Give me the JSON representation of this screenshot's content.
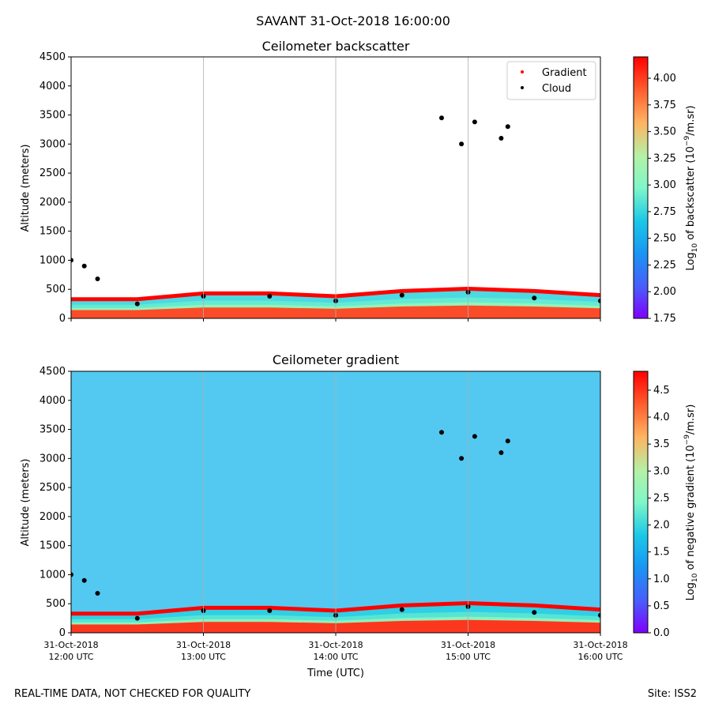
{
  "figure": {
    "suptitle": "SAVANT 31-Oct-2018 16:00:00",
    "footer_left": "REAL-TIME DATA, NOT CHECKED FOR QUALITY",
    "footer_right": "Site: ISS2"
  },
  "chart_data": [
    {
      "type": "heatmap",
      "title": "Ceilometer backscatter",
      "xlabel": "",
      "ylabel": "Altitude (meters)",
      "xlim_hours_utc": [
        12,
        16
      ],
      "ylim": [
        0,
        4500
      ],
      "yticks": [
        0,
        500,
        1000,
        1500,
        2000,
        2500,
        3000,
        3500,
        4000,
        4500
      ],
      "xgrid_hours": [
        13,
        14,
        15
      ],
      "colorbar": {
        "label_prefix": "Log",
        "label_sub": "10",
        "label_mid": " of backscatter (10",
        "label_sup": "−9",
        "label_suffix": "/m.sr)",
        "range": [
          1.75,
          4.2
        ],
        "ticks": [
          "1.75",
          "2.00",
          "2.25",
          "2.50",
          "2.75",
          "3.00",
          "3.25",
          "3.50",
          "3.75",
          "4.00"
        ],
        "tick_values": [
          1.75,
          2.0,
          2.25,
          2.5,
          2.75,
          3.0,
          3.25,
          3.5,
          3.75,
          4.0
        ],
        "colormap": "rainbow"
      },
      "legend": {
        "location": "top-right",
        "entries": [
          {
            "label": "Gradient",
            "color": "#ff0000"
          },
          {
            "label": "Cloud",
            "color": "#000000"
          }
        ]
      },
      "boundary_layer_top_m": [
        {
          "t": 12.0,
          "alt": 330
        },
        {
          "t": 12.5,
          "alt": 330
        },
        {
          "t": 13.0,
          "alt": 430
        },
        {
          "t": 13.5,
          "alt": 430
        },
        {
          "t": 14.0,
          "alt": 380
        },
        {
          "t": 14.5,
          "alt": 470
        },
        {
          "t": 15.0,
          "alt": 510
        },
        {
          "t": 15.5,
          "alt": 470
        },
        {
          "t": 16.0,
          "alt": 400
        }
      ],
      "cloud_points": [
        {
          "t": 12.0,
          "alt": 1000
        },
        {
          "t": 12.1,
          "alt": 900
        },
        {
          "t": 12.2,
          "alt": 680
        },
        {
          "t": 14.8,
          "alt": 3450
        },
        {
          "t": 14.95,
          "alt": 3000
        },
        {
          "t": 15.05,
          "alt": 3380
        },
        {
          "t": 15.25,
          "alt": 3100
        },
        {
          "t": 15.3,
          "alt": 3300
        },
        {
          "t": 12.5,
          "alt": 250
        },
        {
          "t": 13.0,
          "alt": 380
        },
        {
          "t": 13.5,
          "alt": 380
        },
        {
          "t": 14.0,
          "alt": 300
        },
        {
          "t": 14.5,
          "alt": 400
        },
        {
          "t": 15.0,
          "alt": 450
        },
        {
          "t": 15.5,
          "alt": 350
        },
        {
          "t": 16.0,
          "alt": 300
        }
      ],
      "color_band_values": [
        2.75,
        2.9,
        3.1,
        3.4,
        4.0
      ]
    },
    {
      "type": "heatmap",
      "title": "Ceilometer gradient",
      "xlabel": "Time (UTC)",
      "ylabel": "Altitude (meters)",
      "xlim_hours_utc": [
        12,
        16
      ],
      "ylim": [
        0,
        4500
      ],
      "yticks": [
        0,
        500,
        1000,
        1500,
        2000,
        2500,
        3000,
        3500,
        4000,
        4500
      ],
      "xgrid_hours": [
        13,
        14,
        15
      ],
      "xticks": [
        {
          "hour": 12,
          "line1": "31-Oct-2018",
          "line2": "12:00 UTC"
        },
        {
          "hour": 13,
          "line1": "31-Oct-2018",
          "line2": "13:00 UTC"
        },
        {
          "hour": 14,
          "line1": "31-Oct-2018",
          "line2": "14:00 UTC"
        },
        {
          "hour": 15,
          "line1": "31-Oct-2018",
          "line2": "15:00 UTC"
        },
        {
          "hour": 16,
          "line1": "31-Oct-2018",
          "line2": "16:00 UTC"
        }
      ],
      "colorbar": {
        "label_prefix": "Log",
        "label_sub": "10",
        "label_mid": " of negative gradient (10",
        "label_sup": "−9",
        "label_suffix": "/m.sr)",
        "range": [
          0.0,
          4.85
        ],
        "ticks": [
          "0.0",
          "0.5",
          "1.0",
          "1.5",
          "2.0",
          "2.5",
          "3.0",
          "3.5",
          "4.0",
          "4.5"
        ],
        "tick_values": [
          0.0,
          0.5,
          1.0,
          1.5,
          2.0,
          2.5,
          3.0,
          3.5,
          4.0,
          4.5
        ],
        "colormap": "rainbow"
      },
      "background_value": 1.6,
      "boundary_layer_top_m": [
        {
          "t": 12.0,
          "alt": 330
        },
        {
          "t": 12.5,
          "alt": 330
        },
        {
          "t": 13.0,
          "alt": 430
        },
        {
          "t": 13.5,
          "alt": 430
        },
        {
          "t": 14.0,
          "alt": 380
        },
        {
          "t": 14.5,
          "alt": 470
        },
        {
          "t": 15.0,
          "alt": 510
        },
        {
          "t": 15.5,
          "alt": 470
        },
        {
          "t": 16.0,
          "alt": 400
        }
      ],
      "cloud_points": [
        {
          "t": 12.0,
          "alt": 1000
        },
        {
          "t": 12.1,
          "alt": 900
        },
        {
          "t": 12.2,
          "alt": 680
        },
        {
          "t": 14.8,
          "alt": 3450
        },
        {
          "t": 14.95,
          "alt": 3000
        },
        {
          "t": 15.05,
          "alt": 3380
        },
        {
          "t": 15.25,
          "alt": 3100
        },
        {
          "t": 15.3,
          "alt": 3300
        },
        {
          "t": 12.5,
          "alt": 250
        },
        {
          "t": 13.0,
          "alt": 380
        },
        {
          "t": 13.5,
          "alt": 380
        },
        {
          "t": 14.0,
          "alt": 300
        },
        {
          "t": 14.5,
          "alt": 400
        },
        {
          "t": 15.0,
          "alt": 450
        },
        {
          "t": 15.5,
          "alt": 350
        },
        {
          "t": 16.0,
          "alt": 300
        }
      ]
    }
  ]
}
